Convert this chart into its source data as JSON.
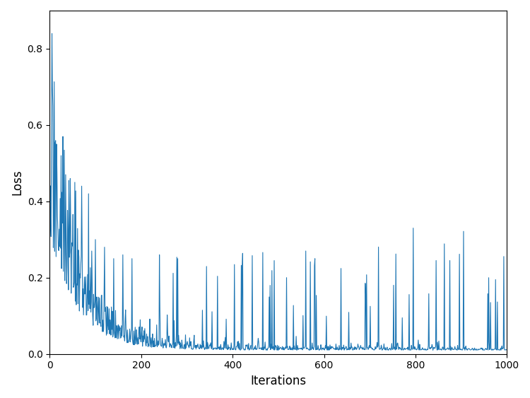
{
  "title": "",
  "xlabel": "Iterations",
  "ylabel": "Loss",
  "xlim": [
    0,
    1000
  ],
  "ylim": [
    0.0,
    0.9
  ],
  "yticks": [
    0.0,
    0.2,
    0.4,
    0.6,
    0.8
  ],
  "xticks": [
    0,
    200,
    400,
    600,
    800,
    1000
  ],
  "line_color": "#1f77b4",
  "line_width": 0.8,
  "background_color": "#ffffff",
  "seed": 17,
  "n_points": 1000
}
